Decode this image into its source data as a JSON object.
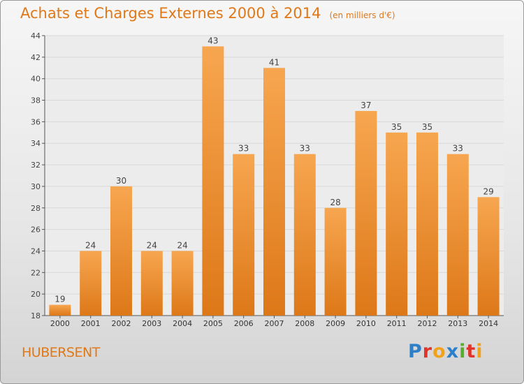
{
  "header": {
    "title": "Achats et Charges Externes 2000 à 2014",
    "unit": "(en milliers d'€)"
  },
  "commune": "HUBERSENT",
  "logo": {
    "text": "Proxiti",
    "letters": [
      {
        "ch": "P",
        "color": "#2e7fc9"
      },
      {
        "ch": "r",
        "color": "#e0332b"
      },
      {
        "ch": "o",
        "color": "#f2a21a"
      },
      {
        "ch": "x",
        "color": "#2e7fc9"
      },
      {
        "ch": "i",
        "color": "#58ad2c"
      },
      {
        "ch": "t",
        "color": "#e0332b"
      },
      {
        "ch": "i",
        "color": "#f2a21a"
      }
    ]
  },
  "colors": {
    "bar_light": "#f7a650",
    "bar_dark": "#dd7818",
    "title": "#e07818",
    "grid": "#d8d8d8"
  },
  "chart_data": {
    "type": "bar",
    "title": "Achats et Charges Externes 2000 à 2014",
    "subtitle": "(en milliers d'€)",
    "categories": [
      "2000",
      "2001",
      "2002",
      "2003",
      "2004",
      "2005",
      "2006",
      "2007",
      "2008",
      "2009",
      "2010",
      "2011",
      "2012",
      "2013",
      "2014"
    ],
    "values": [
      19,
      24,
      30,
      24,
      24,
      43,
      33,
      41,
      33,
      28,
      37,
      35,
      35,
      33,
      29
    ],
    "ylim": [
      18,
      44
    ],
    "yticks": [
      18,
      20,
      22,
      24,
      26,
      28,
      30,
      32,
      34,
      36,
      38,
      40,
      42,
      44
    ],
    "grid": true,
    "xlabel": "",
    "ylabel": ""
  }
}
